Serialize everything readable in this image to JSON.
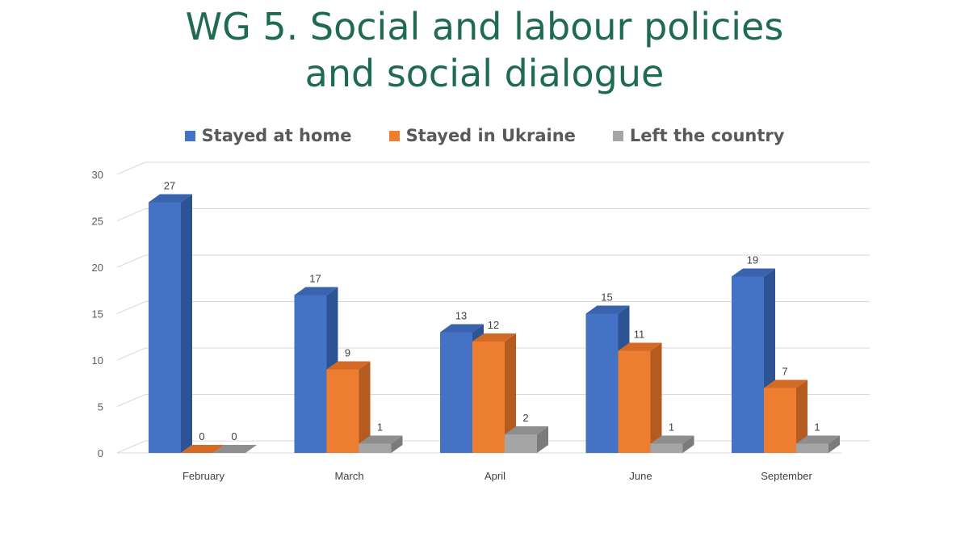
{
  "title_line1": "WG 5. Social and labour policies",
  "title_line2": "and social dialogue",
  "chart_data": {
    "type": "bar",
    "title": "WG 5. Social and labour policies and social dialogue",
    "categories": [
      "February",
      "March",
      "April",
      "June",
      "September"
    ],
    "series": [
      {
        "name": "Stayed at home",
        "values": [
          27,
          17,
          13,
          15,
          19
        ],
        "color": "#4472c4",
        "side": "#2e5395",
        "top": "#3a63ad"
      },
      {
        "name": "Stayed in Ukraine",
        "values": [
          0,
          9,
          12,
          11,
          7
        ],
        "color": "#ed7d31",
        "side": "#b55b20",
        "top": "#d36a25"
      },
      {
        "name": "Left the country",
        "values": [
          0,
          1,
          2,
          1,
          1
        ],
        "color": "#a5a5a5",
        "side": "#7b7b7b",
        "top": "#8e8e8e"
      }
    ],
    "ylim": [
      0,
      30
    ],
    "yticks": [
      0,
      5,
      10,
      15,
      20,
      25,
      30
    ],
    "grid": true,
    "legend_position": "top",
    "style": "3d-clustered-column"
  }
}
